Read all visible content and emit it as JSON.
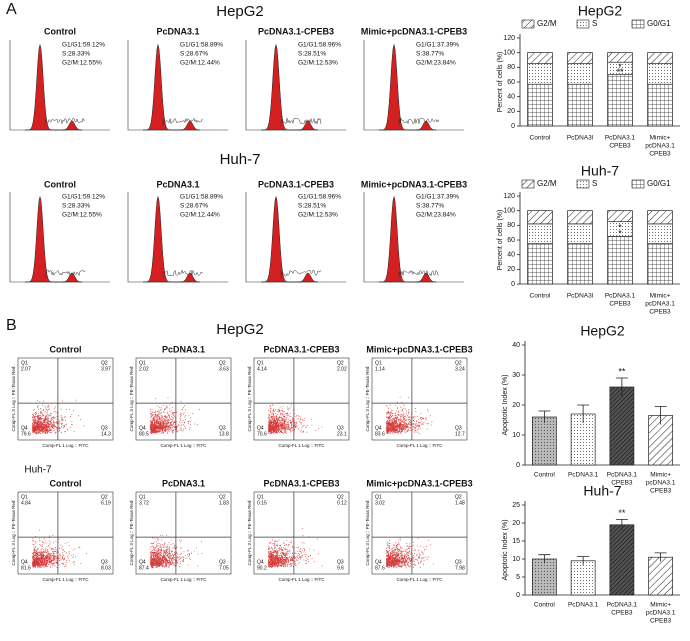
{
  "panel_a": {
    "label": "A",
    "rows": [
      {
        "cell_line": "HepG2",
        "plots": [
          {
            "title": "Control",
            "stats": [
              "G1/G1:59.12%",
              "S:28.33%",
              "G2/M:12.55%"
            ]
          },
          {
            "title": "PcDNA3.1",
            "stats": [
              "G1/G1:58.89%",
              "S:28.67%",
              "G2/M:12.44%"
            ]
          },
          {
            "title": "PcDNA3.1-CPEB3",
            "stats": [
              "G1/G1:58.96%",
              "S:28.51%",
              "G2/M:12.53%"
            ]
          },
          {
            "title": "Mimic+pcDNA3.1-CPEB3",
            "stats": [
              "G1/G1:37.39%",
              "S:38.77%",
              "G2/M:23.84%"
            ]
          }
        ]
      },
      {
        "cell_line": "Huh-7",
        "plots": [
          {
            "title": "Control",
            "stats": [
              "G1/G1:59.12%",
              "S:28.33%",
              "G2/M:12.55%"
            ]
          },
          {
            "title": "PcDNA3.1",
            "stats": [
              "G1/G1:58.89%",
              "S:28.67%",
              "G2/M:12.44%"
            ]
          },
          {
            "title": "PcDNA3.1-CPEB3",
            "stats": [
              "G1/G1:58.96%",
              "S:28.51%",
              "G2/M:12.53%"
            ]
          },
          {
            "title": "Mimic+pcDNA3.1-CPEB3",
            "stats": [
              "G1/G1:37.39%",
              "S:38.77%",
              "G2/M:23.84%"
            ]
          }
        ]
      }
    ]
  },
  "panel_b": {
    "label": "B",
    "x_axis": "Comp-FL 1 Log :: FITC",
    "y_axis": "Comp-FL 3 Log :: PE-Texas Red",
    "rows": [
      {
        "cell_line": "HepG2",
        "plots": [
          {
            "title": "Control",
            "quadrants": [
              {
                "name": "Q1",
                "value": 2.07
              },
              {
                "name": "Q2",
                "value": 3.97
              },
              {
                "name": "Q4",
                "value": 79.6
              },
              {
                "name": "Q3",
                "value": 14.3
              }
            ]
          },
          {
            "title": "PcDNA3.1",
            "quadrants": [
              {
                "name": "Q1",
                "value": 2.02
              },
              {
                "name": "Q2",
                "value": 3.63
              },
              {
                "name": "Q4",
                "value": 80.5
              },
              {
                "name": "Q3",
                "value": 13.8
              }
            ]
          },
          {
            "title": "PcDNA3.1-CPEB3",
            "quadrants": [
              {
                "name": "Q1",
                "value": 4.14
              },
              {
                "name": "Q2",
                "value": 2.02
              },
              {
                "name": "Q4",
                "value": 70.6
              },
              {
                "name": "Q3",
                "value": 23.1
              }
            ]
          },
          {
            "title": "Mimic+pcDNA3.1-CPEB3",
            "quadrants": [
              {
                "name": "Q1",
                "value": 1.14
              },
              {
                "name": "Q2",
                "value": 3.24
              },
              {
                "name": "Q4",
                "value": 83.6
              },
              {
                "name": "Q3",
                "value": 12.7
              }
            ]
          }
        ]
      },
      {
        "cell_line": "Huh-7",
        "plots": [
          {
            "title": "Control",
            "quadrants": [
              {
                "name": "Q1",
                "value": 4.84
              },
              {
                "name": "Q2",
                "value": 6.19
              },
              {
                "name": "Q4",
                "value": 81.6
              },
              {
                "name": "Q3",
                "value": 8.03
              }
            ]
          },
          {
            "title": "PcDNA3.1",
            "quadrants": [
              {
                "name": "Q1",
                "value": 3.72
              },
              {
                "name": "Q2",
                "value": 1.83
              },
              {
                "name": "Q4",
                "value": 87.4
              },
              {
                "name": "Q3",
                "value": 7.05
              }
            ]
          },
          {
            "title": "PcDNA3.1-CPEB3",
            "quadrants": [
              {
                "name": "Q1",
                "value": 0.15
              },
              {
                "name": "Q2",
                "value": 0.12
              },
              {
                "name": "Q4",
                "value": 90.2
              },
              {
                "name": "Q3",
                "value": 9.6
              }
            ]
          },
          {
            "title": "Mimic+pcDNA3.1-CPEB3",
            "quadrants": [
              {
                "name": "Q1",
                "value": 3.02
              },
              {
                "name": "Q2",
                "value": 1.48
              },
              {
                "name": "Q4",
                "value": 87.6
              },
              {
                "name": "Q3",
                "value": 7.98
              }
            ]
          }
        ]
      }
    ]
  },
  "chart_data": [
    {
      "type": "stacked_bar",
      "title": "HepG2",
      "ylabel": "Percent of cells (%)",
      "categories": [
        [
          "Control"
        ],
        [
          "PcDNA3l"
        ],
        [
          "PcDNA3.1",
          "CPEB3"
        ],
        [
          "Mimic+",
          "pcDNA3.1",
          "CPEB3"
        ]
      ],
      "ylim": [
        0,
        120
      ],
      "yticks": [
        0,
        20,
        40,
        60,
        80,
        100,
        120
      ],
      "series": [
        {
          "name": "G0/G1",
          "pattern": "grid",
          "values": [
            57,
            57,
            70,
            57
          ]
        },
        {
          "name": "S",
          "pattern": "dots",
          "values": [
            28,
            28,
            17,
            28
          ]
        },
        {
          "name": "G2/M",
          "pattern": "hatch",
          "values": [
            15,
            15,
            13,
            15
          ]
        }
      ],
      "annotations": [
        "**",
        "*"
      ]
    },
    {
      "type": "stacked_bar",
      "title": "Huh-7",
      "ylabel": "Percent of cells (%)",
      "categories": [
        [
          "Control"
        ],
        [
          "PcDNA3l"
        ],
        [
          "PcDNA3.1",
          "CPEB3"
        ],
        [
          "Mimic+",
          "pcDNA3.1",
          "CPEB3"
        ]
      ],
      "ylim": [
        0,
        120
      ],
      "yticks": [
        0,
        20,
        40,
        60,
        80,
        100,
        120
      ],
      "series": [
        {
          "name": "G0/G1",
          "pattern": "grid",
          "values": [
            55,
            55,
            65,
            55
          ]
        },
        {
          "name": "S",
          "pattern": "dots",
          "values": [
            27,
            27,
            20,
            27
          ]
        },
        {
          "name": "G2/M",
          "pattern": "hatch",
          "values": [
            18,
            18,
            15,
            18
          ]
        }
      ],
      "annotations": [
        "*",
        "*"
      ]
    },
    {
      "type": "bar",
      "title": "HepG2",
      "ylabel": "Apoptotic Index (%)",
      "categories": [
        [
          "Control"
        ],
        [
          "PcDNA3.1"
        ],
        [
          "PcDNA3.1",
          "CPEB3"
        ],
        [
          "Mimic+",
          "pcDNA3.1",
          "CPEB3"
        ]
      ],
      "values": [
        16,
        17,
        26,
        16.5
      ],
      "errors": [
        2,
        3,
        3,
        3
      ],
      "patterns": [
        "gray",
        "dots",
        "dark",
        "hatch"
      ],
      "ylim": [
        0,
        40
      ],
      "yticks": [
        0,
        10,
        20,
        30,
        40
      ],
      "annotations": [
        "**"
      ]
    },
    {
      "type": "bar",
      "title": "Huh-7",
      "ylabel": "Apoptotic Index (%)",
      "categories": [
        [
          "Control"
        ],
        [
          "PcDNA3.1"
        ],
        [
          "PcDNA3.1",
          "CPEB3"
        ],
        [
          "Mimic+",
          "pcDNA3.1",
          "CPEB3"
        ]
      ],
      "values": [
        10,
        9.5,
        19.5,
        10.5
      ],
      "errors": [
        1.2,
        1.2,
        1.5,
        1.2
      ],
      "patterns": [
        "gray",
        "dots",
        "dark",
        "hatch"
      ],
      "ylim": [
        0,
        25
      ],
      "yticks": [
        0,
        5,
        10,
        15,
        20,
        25
      ],
      "annotations": [
        "**"
      ]
    }
  ]
}
